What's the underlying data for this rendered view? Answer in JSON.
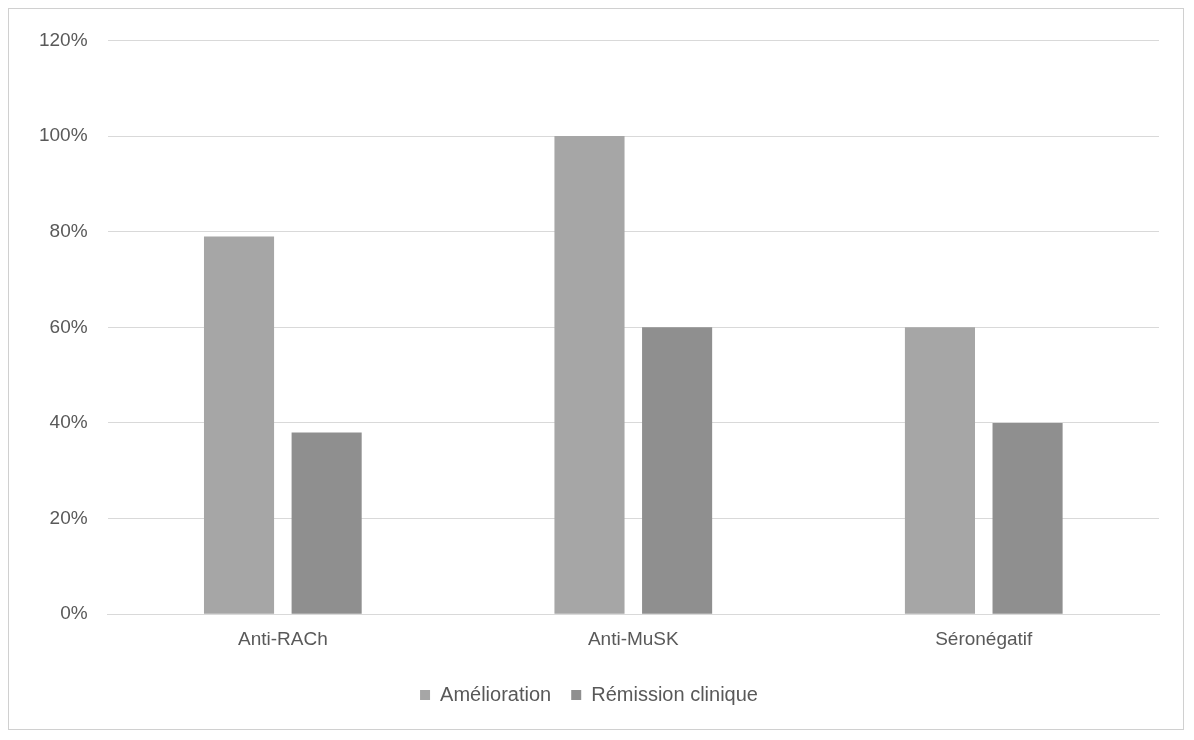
{
  "chart_data": {
    "type": "bar",
    "categories": [
      "Anti-RACh",
      "Anti-MuSK",
      "Séronégatif"
    ],
    "series": [
      {
        "name": "Amélioration",
        "color": "#a6a6a6",
        "values": [
          79,
          100,
          60
        ]
      },
      {
        "name": "Rémission clinique",
        "color": "#8f8f8f",
        "values": [
          38,
          60,
          40
        ]
      }
    ],
    "ylim": [
      0,
      120
    ],
    "yticks": [
      {
        "value": 0,
        "label": "0%"
      },
      {
        "value": 20,
        "label": "20%"
      },
      {
        "value": 40,
        "label": "40%"
      },
      {
        "value": 60,
        "label": "60%"
      },
      {
        "value": 80,
        "label": "80%"
      },
      {
        "value": 100,
        "label": "100%"
      },
      {
        "value": 120,
        "label": "120%"
      }
    ],
    "grid": "y",
    "legend": "bottom"
  }
}
